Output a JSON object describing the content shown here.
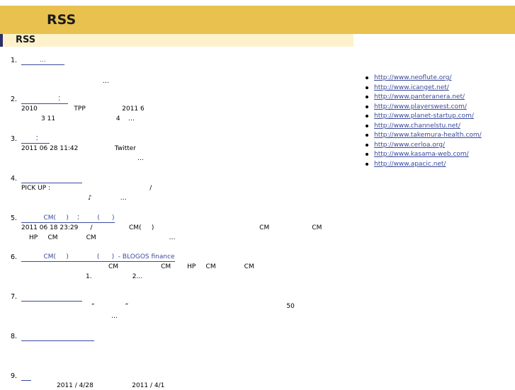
{
  "header": {
    "site_title": "RSS",
    "section_title": "RSS"
  },
  "items": [
    {
      "num": "1.",
      "link": "         …         ",
      "desc": [
        {
          "text": "…"
        }
      ]
    },
    {
      "num": "2.",
      "link": "                  ：  ",
      "desc": [
        {
          "text": "2010                  TPP                  2011 6"
        },
        {
          "text": "3 11                              4    …"
        }
      ]
    },
    {
      "num": "3.",
      "link": "       ：    ",
      "desc": [
        {
          "text": "2011 06 28 11:42                  Twitter"
        },
        {
          "text": "…"
        }
      ]
    },
    {
      "num": "4.",
      "link": "                              ",
      "desc": [
        {
          "text": "PICK UP :                                                 /"
        },
        {
          "text": "♪              …"
        }
      ]
    },
    {
      "num": "5.",
      "link": "           CM(     )    ：       (      )",
      "desc": [
        {
          "text": "2011 06 18 23:29      /                  CM(     )                                                    CM                     CM"
        },
        {
          "text": "HP     CM              CM                                    …"
        }
      ]
    },
    {
      "num": "6.",
      "link": "           CM(     )              (      )  - BLOGOS finance",
      "desc": [
        {
          "text": "CM                     CM        HP     CM              CM"
        },
        {
          "text": "1.                    2..."
        }
      ]
    },
    {
      "num": "7.",
      "link": "                              ",
      "desc": [
        {
          "text": "“               ”                                                                              50"
        },
        {
          "text": "…"
        }
      ]
    },
    {
      "num": "8.",
      "link": "                                    ",
      "desc": []
    },
    {
      "num": "9.",
      "link": "     ",
      "desc": [
        {
          "text": "2011 / 4/28                   2011 / 4/1"
        }
      ]
    }
  ],
  "sidebar": {
    "links": [
      "http://www.neoflute.org/",
      "http://www.icanget.net/",
      "http://www.panteranera.net/",
      "http://www.playerswest.com/",
      "http://www.planet-startup.com/",
      "http://www.channelstu.net/",
      "http://www.takemura-health.com/",
      "http://www.cerloa.org/",
      "http://www.kasama-web.com/",
      "http://www.apacic.net/"
    ]
  }
}
